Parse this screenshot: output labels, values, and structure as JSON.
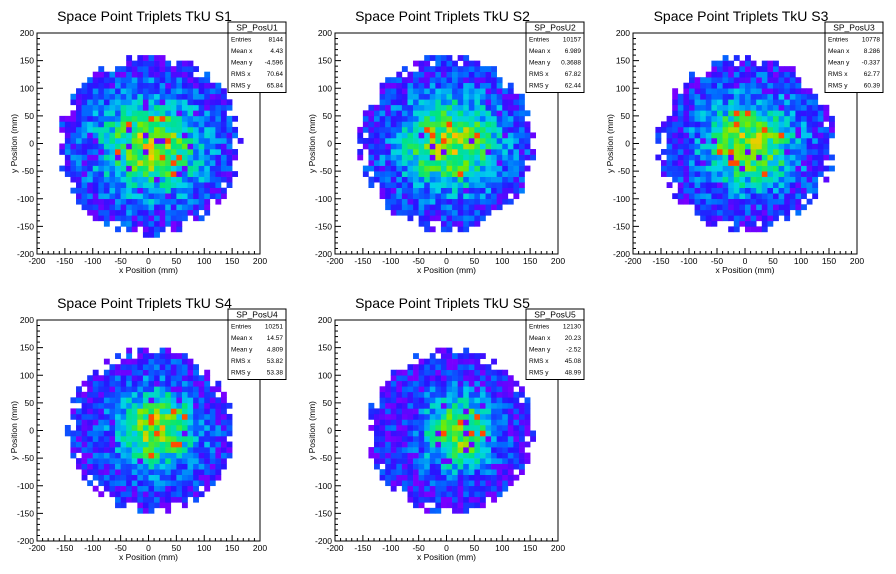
{
  "chart_data": [
    {
      "type": "heatmap",
      "title": "Space Point Triplets TkU S1",
      "xlabel": "x Position (mm)",
      "ylabel": "y Position (mm)",
      "xlim": [
        -200,
        200
      ],
      "ylim": [
        -200,
        200
      ],
      "xticks": [
        "-200",
        "-150",
        "-100",
        "-50",
        "0",
        "50",
        "100",
        "150",
        "200"
      ],
      "yticks": [
        "-200",
        "-150",
        "-100",
        "-50",
        "0",
        "50",
        "100",
        "150",
        "200"
      ],
      "bin_width": 10,
      "stats": {
        "name": "SP_PosU1",
        "rows": [
          {
            "label": "Entries",
            "value": "8144"
          },
          {
            "label": "Mean x",
            "value": "4.43"
          },
          {
            "label": "Mean y",
            "value": "-4.596"
          },
          {
            "label": "RMS x",
            "value": "70.64"
          },
          {
            "label": "RMS y",
            "value": "65.84"
          }
        ]
      },
      "distribution": {
        "cx": 4.43,
        "cy": -4.596,
        "sx": 70.64,
        "sy": 65.84,
        "radius": 165
      }
    },
    {
      "type": "heatmap",
      "title": "Space Point Triplets TkU S2",
      "xlabel": "x Position (mm)",
      "ylabel": "y Position (mm)",
      "xlim": [
        -200,
        200
      ],
      "ylim": [
        -200,
        200
      ],
      "xticks": [
        "-200",
        "-150",
        "-100",
        "-50",
        "0",
        "50",
        "100",
        "150",
        "200"
      ],
      "yticks": [
        "-200",
        "-150",
        "-100",
        "-50",
        "0",
        "50",
        "100",
        "150",
        "200"
      ],
      "bin_width": 10,
      "stats": {
        "name": "SP_PosU2",
        "rows": [
          {
            "label": "Entries",
            "value": "10157"
          },
          {
            "label": "Mean x",
            "value": "6.989"
          },
          {
            "label": "Mean y",
            "value": "0.3688"
          },
          {
            "label": "RMS x",
            "value": "67.82"
          },
          {
            "label": "RMS y",
            "value": "62.44"
          }
        ]
      },
      "distribution": {
        "cx": 6.989,
        "cy": 0.3688,
        "sx": 67.82,
        "sy": 62.44,
        "radius": 160
      }
    },
    {
      "type": "heatmap",
      "title": "Space Point Triplets TkU S3",
      "xlabel": "x Position (mm)",
      "ylabel": "y Position (mm)",
      "xlim": [
        -200,
        200
      ],
      "ylim": [
        -200,
        200
      ],
      "xticks": [
        "-200",
        "-150",
        "-100",
        "-50",
        "0",
        "50",
        "100",
        "150",
        "200"
      ],
      "yticks": [
        "-200",
        "-150",
        "-100",
        "-50",
        "0",
        "50",
        "100",
        "150",
        "200"
      ],
      "bin_width": 10,
      "stats": {
        "name": "SP_PosU3",
        "rows": [
          {
            "label": "Entries",
            "value": "10778"
          },
          {
            "label": "Mean x",
            "value": "8.286"
          },
          {
            "label": "Mean y",
            "value": "-0.337"
          },
          {
            "label": "RMS x",
            "value": "62.77"
          },
          {
            "label": "RMS y",
            "value": "60.39"
          }
        ]
      },
      "distribution": {
        "cx": 8.286,
        "cy": -0.337,
        "sx": 62.77,
        "sy": 60.39,
        "radius": 160
      }
    },
    {
      "type": "heatmap",
      "title": "Space Point Triplets TkU S4",
      "xlabel": "x Position (mm)",
      "ylabel": "y Position (mm)",
      "xlim": [
        -200,
        200
      ],
      "ylim": [
        -200,
        200
      ],
      "xticks": [
        "-200",
        "-150",
        "-100",
        "-50",
        "0",
        "50",
        "100",
        "150",
        "200"
      ],
      "yticks": [
        "-200",
        "-150",
        "-100",
        "-50",
        "0",
        "50",
        "100",
        "150",
        "200"
      ],
      "bin_width": 10,
      "stats": {
        "name": "SP_PosU4",
        "rows": [
          {
            "label": "Entries",
            "value": "10251"
          },
          {
            "label": "Mean x",
            "value": "14.57"
          },
          {
            "label": "Mean y",
            "value": "4.809"
          },
          {
            "label": "RMS x",
            "value": "53.82"
          },
          {
            "label": "RMS y",
            "value": "53.38"
          }
        ]
      },
      "distribution": {
        "cx": 14.57,
        "cy": 4.809,
        "sx": 53.82,
        "sy": 53.38,
        "radius": 150
      }
    },
    {
      "type": "heatmap",
      "title": "Space Point Triplets TkU S5",
      "xlabel": "x Position (mm)",
      "ylabel": "y Position (mm)",
      "xlim": [
        -200,
        200
      ],
      "ylim": [
        -200,
        200
      ],
      "xticks": [
        "-200",
        "-150",
        "-100",
        "-50",
        "0",
        "50",
        "100",
        "150",
        "200"
      ],
      "yticks": [
        "-200",
        "-150",
        "-100",
        "-50",
        "0",
        "50",
        "100",
        "150",
        "200"
      ],
      "bin_width": 10,
      "stats": {
        "name": "SP_PosU5",
        "rows": [
          {
            "label": "Entries",
            "value": "12130"
          },
          {
            "label": "Mean x",
            "value": "20.23"
          },
          {
            "label": "Mean y",
            "value": "-2.52"
          },
          {
            "label": "RMS x",
            "value": "45.08"
          },
          {
            "label": "RMS y",
            "value": "48.99"
          }
        ]
      },
      "distribution": {
        "cx": 20.23,
        "cy": -2.52,
        "sx": 45.08,
        "sy": 48.99,
        "radius": 150
      }
    }
  ]
}
